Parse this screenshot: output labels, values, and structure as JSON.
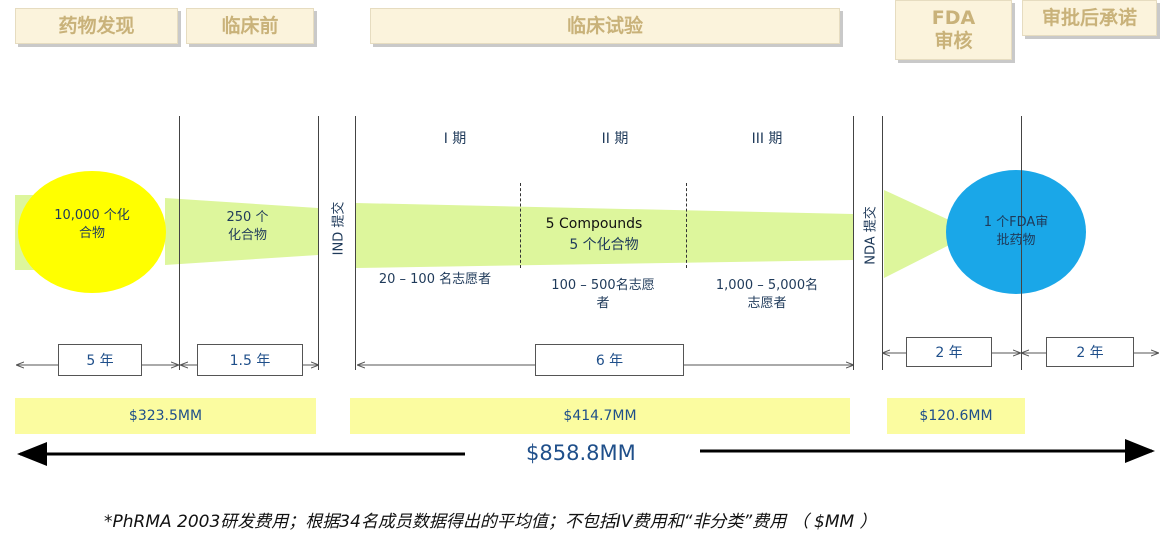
{
  "phases": [
    {
      "label": "药物发现"
    },
    {
      "label": "临床前"
    },
    {
      "label": "临床试验"
    },
    {
      "label": "FDA\n审核"
    },
    {
      "label": "审批后承诺"
    }
  ],
  "trial_phases": [
    "I 期",
    "II 期",
    "III 期"
  ],
  "shapes": {
    "discovery": "10,000 个化\n合物",
    "preclinical": "250 个\n化合物",
    "trial_compounds_en": "5 Compounds",
    "trial_compounds_cn": "5 个化合物",
    "approved": "1 个FDA审\n批药物"
  },
  "volunteers": [
    "20 – 100 名志愿者",
    "100 – 500名志愿\n者",
    "1,000 – 5,000名\n志愿者"
  ],
  "submissions": {
    "ind": "IND 提交",
    "nda": "NDA 提交"
  },
  "durations": [
    "5 年",
    "1.5 年",
    "6 年",
    "2 年",
    "2 年"
  ],
  "costs": [
    "$323.5MM",
    "$414.7MM",
    "$120.6MM"
  ],
  "total_cost": "$858.8MM",
  "footnote": "*PhRMA 2003研发费用；根据34名成员数据得出的平均值；不包括IV费用和“非分类”费用 （ $MM ）",
  "colors": {
    "funnel_green": "#ddf69c",
    "discovery_yellow": "#ffff00",
    "approved_blue": "#1aa7e8",
    "cost_bar": "#fbfca0",
    "phase_box_bg": "#fbf3dc",
    "phase_box_text": "#c9b27a",
    "label_text": "#1f3a5a"
  }
}
